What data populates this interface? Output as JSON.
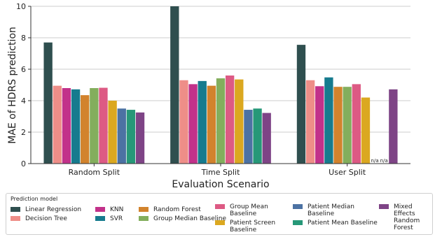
{
  "chart_data": {
    "type": "bar",
    "title": "",
    "xlabel": "Evaluation Scenario",
    "ylabel": "MAE of HDRS prediction",
    "ylim": [
      0,
      10
    ],
    "yticks": [
      0,
      2,
      4,
      6,
      8,
      10
    ],
    "grid": true,
    "categories": [
      "Random Split",
      "Time Split",
      "User Split"
    ],
    "missing_label": "n/a",
    "legend_title": "Prediction model",
    "legend_placement": "bottom",
    "series": [
      {
        "name": "Linear Regression",
        "color": "#2f4f4f",
        "values": [
          7.7,
          10.0,
          7.55
        ]
      },
      {
        "name": "Decision Tree",
        "color": "#ee8e88",
        "values": [
          4.95,
          5.3,
          5.3
        ]
      },
      {
        "name": "KNN",
        "color": "#c2318a",
        "values": [
          4.8,
          5.05,
          4.92
        ]
      },
      {
        "name": "SVR",
        "color": "#167b8e",
        "values": [
          4.72,
          5.25,
          5.48
        ]
      },
      {
        "name": "Random Forest",
        "color": "#d2832d",
        "values": [
          4.35,
          4.95,
          4.88
        ]
      },
      {
        "name": "Group Median Baseline",
        "color": "#83ae5d",
        "values": [
          4.8,
          5.42,
          4.88
        ]
      },
      {
        "name": "Group Mean Baseline",
        "color": "#dd5a84",
        "values": [
          4.82,
          5.6,
          5.05
        ]
      },
      {
        "name": "Patient Screen Baseline",
        "color": "#dba820",
        "values": [
          4.0,
          5.35,
          4.2
        ]
      },
      {
        "name": "Patient Median Baseline",
        "color": "#4c72a3",
        "values": [
          3.5,
          3.42,
          null
        ]
      },
      {
        "name": "Patient Mean Baseline",
        "color": "#269878",
        "values": [
          3.42,
          3.5,
          null
        ]
      },
      {
        "name": "Mixed Effects Random Forest",
        "color": "#7e4486",
        "values": [
          3.25,
          3.22,
          4.72
        ]
      }
    ]
  }
}
